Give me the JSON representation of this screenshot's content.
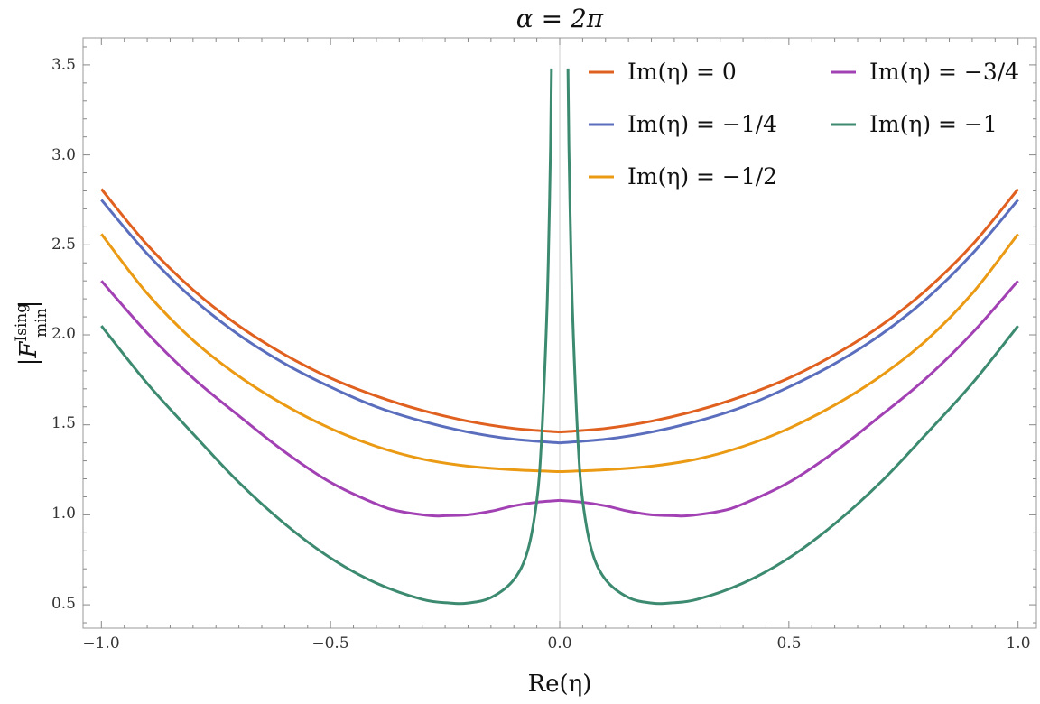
{
  "chart_data": {
    "type": "line",
    "title": "α = 2π",
    "xlabel": "Re(η)",
    "ylabel": "|F_min^Ising|",
    "ylabel_main": "|F",
    "ylabel_sup": "Ising",
    "ylabel_sub": "min",
    "ylabel_end": "|",
    "xlim": [
      -1.04,
      1.04
    ],
    "ylim": [
      0.37,
      3.65
    ],
    "xticks": [
      -1.0,
      -0.5,
      0.0,
      0.5,
      1.0
    ],
    "xtick_labels": [
      "−1.0",
      "−0.5",
      "0.0",
      "0.5",
      "1.0"
    ],
    "yticks": [
      0.5,
      1.0,
      1.5,
      2.0,
      2.5,
      3.0,
      3.5
    ],
    "ytick_labels": [
      "0.5",
      "1.0",
      "1.5",
      "2.0",
      "2.5",
      "3.0",
      "3.5"
    ],
    "grid": false,
    "legend_position": "top-right",
    "series": [
      {
        "name": "Im(η) = 0",
        "color": "#e0601f",
        "x": [
          0,
          0.1,
          0.2,
          0.3,
          0.4,
          0.5,
          0.6,
          0.7,
          0.8,
          0.9,
          1.0
        ],
        "y": [
          1.46,
          1.48,
          1.52,
          1.58,
          1.66,
          1.76,
          1.89,
          2.05,
          2.25,
          2.5,
          2.81
        ]
      },
      {
        "name": "Im(η) = −1/4",
        "color": "#5a6ebd",
        "x": [
          0,
          0.1,
          0.2,
          0.3,
          0.4,
          0.5,
          0.6,
          0.7,
          0.8,
          0.9,
          1.0
        ],
        "y": [
          1.4,
          1.42,
          1.46,
          1.52,
          1.6,
          1.71,
          1.84,
          2.0,
          2.2,
          2.45,
          2.75
        ]
      },
      {
        "name": "Im(η) = −1/2",
        "color": "#eb9a14",
        "x": [
          0,
          0.1,
          0.2,
          0.3,
          0.4,
          0.5,
          0.6,
          0.7,
          0.8,
          0.9,
          1.0
        ],
        "y": [
          1.24,
          1.25,
          1.27,
          1.31,
          1.38,
          1.48,
          1.61,
          1.77,
          1.97,
          2.23,
          2.56
        ]
      },
      {
        "name": "Im(η) = −3/4",
        "color": "#a241b3",
        "x": [
          0,
          0.05,
          0.1,
          0.15,
          0.2,
          0.25,
          0.28,
          0.35,
          0.4,
          0.5,
          0.6,
          0.7,
          0.8,
          0.9,
          1.0
        ],
        "y": [
          1.08,
          1.07,
          1.05,
          1.02,
          1.0,
          0.995,
          0.995,
          1.02,
          1.06,
          1.18,
          1.35,
          1.55,
          1.76,
          2.01,
          2.3
        ]
      },
      {
        "name": "Im(η) = −1",
        "color": "#3c8a70",
        "x": [
          0.018,
          0.02,
          0.025,
          0.03,
          0.04,
          0.05,
          0.07,
          0.1,
          0.15,
          0.2,
          0.24,
          0.3,
          0.4,
          0.5,
          0.6,
          0.7,
          0.8,
          0.9,
          1.0
        ],
        "y": [
          3.48,
          3.05,
          2.4,
          1.98,
          1.4,
          1.08,
          0.8,
          0.64,
          0.54,
          0.51,
          0.51,
          0.53,
          0.62,
          0.76,
          0.95,
          1.18,
          1.45,
          1.73,
          2.05
        ]
      }
    ]
  }
}
